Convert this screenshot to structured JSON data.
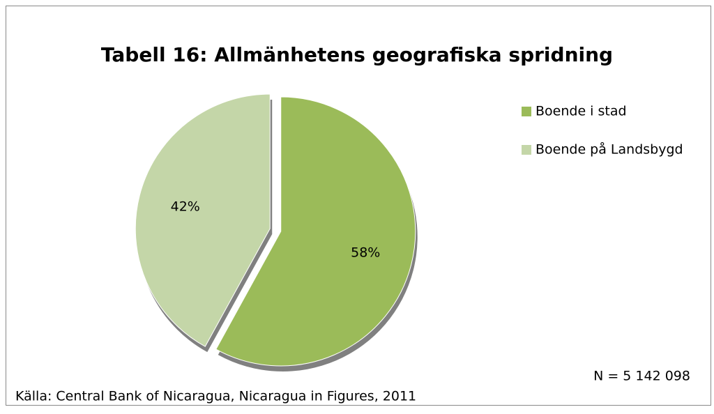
{
  "chart_data": {
    "type": "pie",
    "title": "Tabell 16: Allmänhetens geografiska spridning",
    "categories": [
      "Boende i stad",
      "Boende på Landsbygd"
    ],
    "values": [
      58,
      42
    ],
    "value_labels": [
      "58%",
      "42%"
    ],
    "colors": [
      "#9bbb59",
      "#c4d6a8"
    ],
    "legend": "right",
    "annotations": [
      "N = 5 142 098",
      "Källa: Central Bank of Nicaragua, Nicaragua in Figures, 2011"
    ]
  }
}
